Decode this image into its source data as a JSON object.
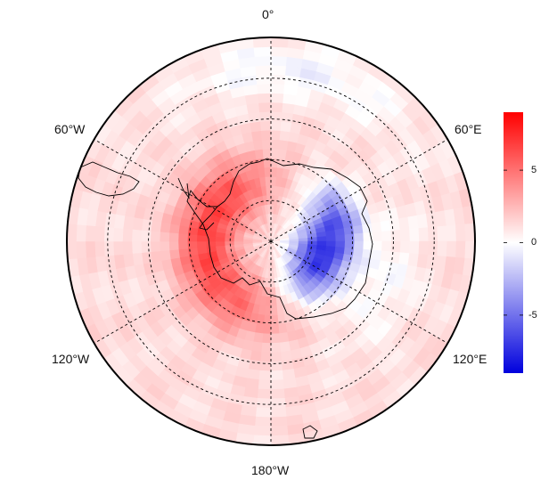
{
  "map": {
    "projection": "south-polar-stereographic",
    "graticule": {
      "meridian_step_deg": 60,
      "parallel_rings": 4,
      "style": "dashed"
    },
    "longitude_labels": [
      {
        "id": "lon-0",
        "text": "0°",
        "lon": 0
      },
      {
        "id": "lon-60e",
        "text": "60°E",
        "lon": 60
      },
      {
        "id": "lon-120e",
        "text": "120°E",
        "lon": 120
      },
      {
        "id": "lon-180",
        "text": "180°W",
        "lon": 180
      },
      {
        "id": "lon-120w",
        "text": "120°W",
        "lon": -120
      },
      {
        "id": "lon-60w",
        "text": "60°W",
        "lon": -60
      }
    ],
    "field": {
      "description_colors": "diverging blue-white-red anomaly field",
      "features": [
        {
          "sign": "positive",
          "region": "Antarctic Peninsula / Weddell sector",
          "magnitude": 5
        },
        {
          "sign": "negative",
          "region": "East Antarctica",
          "magnitude": -7
        },
        {
          "sign": "positive",
          "region": "Ross Sea sector",
          "magnitude": 4
        },
        {
          "sign": "weak-positive",
          "region": "mid-latitude ocean",
          "magnitude": 1.5
        }
      ]
    }
  },
  "colorbar": {
    "min": -9,
    "max": 9,
    "ticks": [
      {
        "value": 5,
        "label": "5"
      },
      {
        "value": 0,
        "label": "0"
      },
      {
        "value": -5,
        "label": "-5"
      }
    ],
    "colors": {
      "low": "#0000dd",
      "mid": "#ffffff",
      "high": "#ff0000"
    }
  }
}
